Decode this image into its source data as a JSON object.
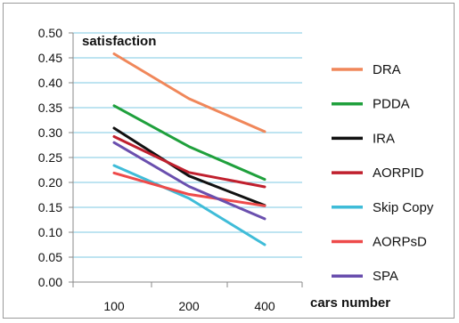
{
  "chart_data": {
    "type": "line",
    "title": "",
    "annotation": "satisfaction",
    "xlabel": "cars number",
    "ylabel": "",
    "categories": [
      "100",
      "200",
      "400"
    ],
    "ylim": [
      0,
      0.5
    ],
    "yticks": [
      "0.00",
      "0.05",
      "0.10",
      "0.15",
      "0.20",
      "0.25",
      "0.30",
      "0.35",
      "0.40",
      "0.45",
      "0.50"
    ],
    "grid": true,
    "legend": "right",
    "series": [
      {
        "name": "DRA",
        "color": "#f0875a",
        "values": [
          0.458,
          0.368,
          0.302
        ]
      },
      {
        "name": "PDDA",
        "color": "#1fa03c",
        "values": [
          0.354,
          0.272,
          0.206
        ]
      },
      {
        "name": "IRA",
        "color": "#111111",
        "values": [
          0.309,
          0.213,
          0.154
        ]
      },
      {
        "name": "AORPID",
        "color": "#c0202e",
        "values": [
          0.292,
          0.22,
          0.191
        ]
      },
      {
        "name": "Skip Copy",
        "color": "#3fbcd8",
        "values": [
          0.234,
          0.168,
          0.075
        ]
      },
      {
        "name": "AORPsD",
        "color": "#ee4a4a",
        "values": [
          0.219,
          0.176,
          0.153
        ]
      },
      {
        "name": "SPA",
        "color": "#6a4fae",
        "values": [
          0.28,
          0.192,
          0.127
        ]
      }
    ]
  }
}
